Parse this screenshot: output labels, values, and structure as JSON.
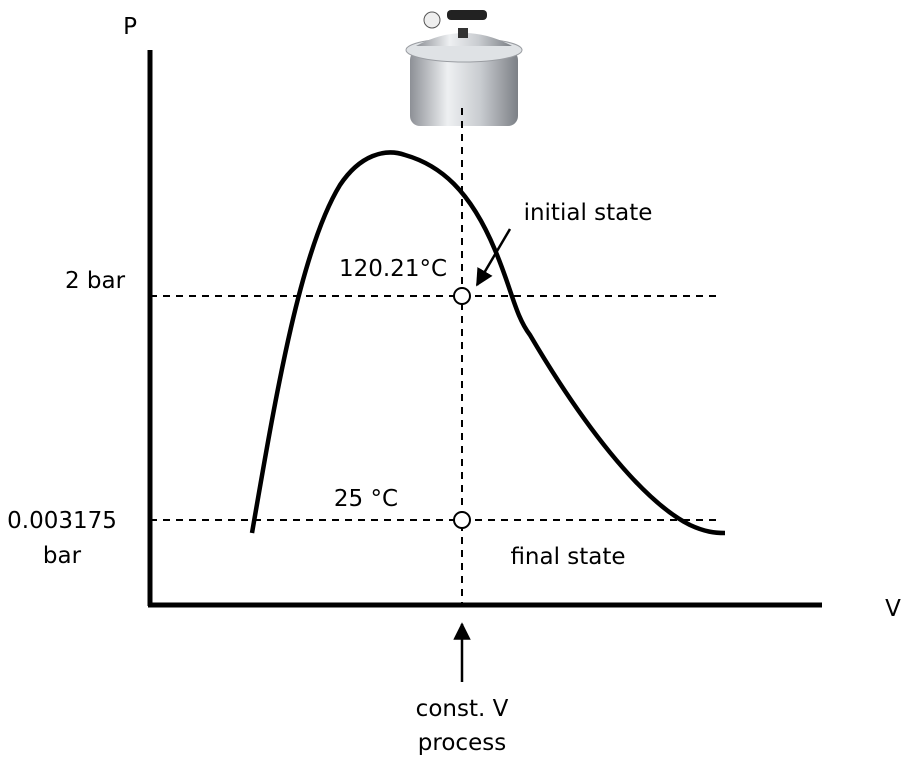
{
  "axes": {
    "y_label": "P",
    "x_label": "V"
  },
  "pressure_levels": [
    {
      "label_lines": [
        "2 bar"
      ],
      "temperature": "120.21°C"
    },
    {
      "label_lines": [
        "0.003175",
        "bar"
      ],
      "temperature": "25 °C"
    }
  ],
  "states": {
    "initial": "initial state",
    "final": "final state"
  },
  "process": {
    "label_lines": [
      "const. V",
      "process"
    ]
  }
}
